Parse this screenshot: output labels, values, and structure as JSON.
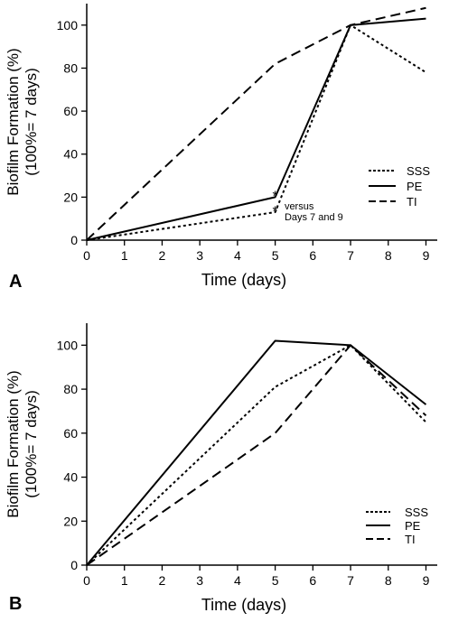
{
  "chart_data": [
    {
      "panel": "A",
      "type": "line",
      "xlabel": "Time (days)",
      "ylabel_line1": "Biofilm Formation (%)",
      "ylabel_line2": "(100%= 7 days)",
      "xlim": [
        0,
        9.3
      ],
      "ylim": [
        0,
        110
      ],
      "xticks": [
        0,
        1,
        2,
        3,
        4,
        5,
        6,
        7,
        8,
        9
      ],
      "yticks": [
        0,
        20,
        40,
        60,
        80,
        100
      ],
      "legend_position": "right",
      "series": [
        {
          "name": "SSS",
          "style": "dotted",
          "x": [
            0,
            5,
            7,
            9
          ],
          "y": [
            0,
            13,
            100,
            78
          ]
        },
        {
          "name": "PE",
          "style": "solid",
          "x": [
            0,
            5,
            7,
            9
          ],
          "y": [
            0,
            20,
            100,
            103
          ]
        },
        {
          "name": "TI",
          "style": "dashed",
          "x": [
            0,
            5,
            7,
            9
          ],
          "y": [
            0,
            82,
            100,
            108
          ]
        }
      ],
      "annotations": [
        {
          "text": "*",
          "x": 5,
          "y": 22
        },
        {
          "text": "*",
          "x": 5,
          "y": 15
        },
        {
          "text": "versus",
          "x": 5.2,
          "y": 16
        },
        {
          "text": "Days 7 and 9",
          "x": 5.2,
          "y": 11
        }
      ]
    },
    {
      "panel": "B",
      "type": "line",
      "xlabel": "Time (days)",
      "ylabel_line1": "Biofilm Formation (%)",
      "ylabel_line2": "(100%= 7 days)",
      "xlim": [
        0,
        9.3
      ],
      "ylim": [
        0,
        110
      ],
      "xticks": [
        0,
        1,
        2,
        3,
        4,
        5,
        6,
        7,
        8,
        9
      ],
      "yticks": [
        0,
        20,
        40,
        60,
        80,
        100
      ],
      "legend_position": "bottom-right",
      "series": [
        {
          "name": "SSS",
          "style": "dotted",
          "x": [
            0,
            5,
            7,
            9
          ],
          "y": [
            0,
            81,
            100,
            65
          ]
        },
        {
          "name": "PE",
          "style": "solid",
          "x": [
            0,
            5,
            7,
            9
          ],
          "y": [
            0,
            102,
            100,
            73
          ]
        },
        {
          "name": "TI",
          "style": "dashed",
          "x": [
            0,
            5,
            7,
            9
          ],
          "y": [
            0,
            60,
            100,
            68
          ]
        }
      ],
      "annotations": []
    }
  ]
}
